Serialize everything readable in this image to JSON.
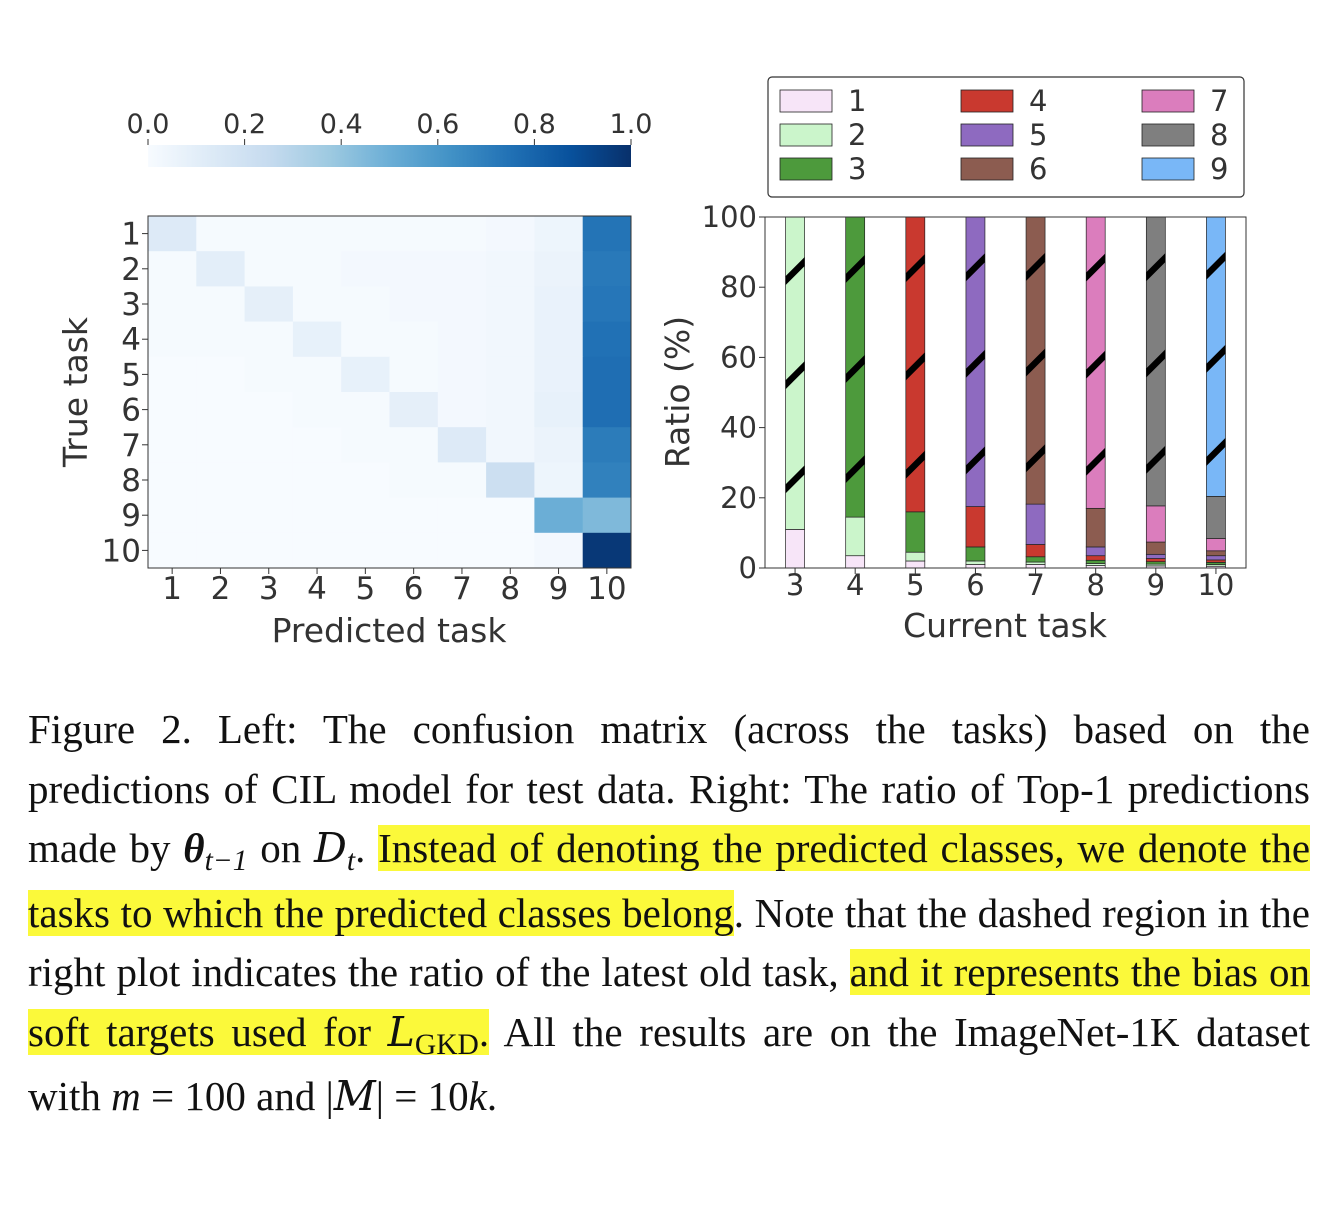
{
  "chart_data": [
    {
      "type": "heatmap",
      "xlabel": "Predicted task",
      "ylabel": "True task",
      "x_ticks": [
        "1",
        "2",
        "3",
        "4",
        "5",
        "6",
        "7",
        "8",
        "9",
        "10"
      ],
      "y_ticks": [
        "1",
        "2",
        "3",
        "4",
        "5",
        "6",
        "7",
        "8",
        "9",
        "10"
      ],
      "colorbar": {
        "ticks": [
          "0.0",
          "0.2",
          "0.4",
          "0.6",
          "0.8",
          "1.0"
        ],
        "range": [
          0,
          1
        ],
        "colormap": [
          "#f7fbff",
          "#deebf7",
          "#c6dbef",
          "#9ecae1",
          "#6baed6",
          "#4292c6",
          "#2171b5",
          "#08519c",
          "#08306b"
        ]
      },
      "matrix": [
        [
          0.13,
          0.01,
          0.01,
          0.01,
          0.01,
          0.01,
          0.01,
          0.02,
          0.05,
          0.74
        ],
        [
          0.01,
          0.1,
          0.01,
          0.01,
          0.02,
          0.02,
          0.02,
          0.03,
          0.06,
          0.72
        ],
        [
          0.01,
          0.01,
          0.09,
          0.01,
          0.01,
          0.02,
          0.02,
          0.03,
          0.07,
          0.73
        ],
        [
          0.01,
          0.01,
          0.01,
          0.08,
          0.01,
          0.01,
          0.02,
          0.03,
          0.07,
          0.75
        ],
        [
          0.0,
          0.0,
          0.01,
          0.01,
          0.08,
          0.01,
          0.02,
          0.03,
          0.07,
          0.76
        ],
        [
          0.0,
          0.0,
          0.0,
          0.01,
          0.01,
          0.09,
          0.02,
          0.03,
          0.08,
          0.76
        ],
        [
          0.0,
          0.0,
          0.0,
          0.0,
          0.01,
          0.01,
          0.13,
          0.03,
          0.06,
          0.71
        ],
        [
          0.0,
          0.0,
          0.0,
          0.0,
          0.0,
          0.01,
          0.01,
          0.22,
          0.05,
          0.69
        ],
        [
          0.0,
          0.0,
          0.0,
          0.0,
          0.0,
          0.0,
          0.0,
          0.0,
          0.5,
          0.45
        ],
        [
          0.0,
          0.0,
          0.0,
          0.0,
          0.0,
          0.0,
          0.0,
          0.0,
          0.02,
          0.97
        ]
      ]
    },
    {
      "type": "bar",
      "stacked": true,
      "xlabel": "Current task",
      "ylabel": "Ratio (%)",
      "ylim": [
        0,
        100
      ],
      "y_ticks": [
        0,
        20,
        40,
        60,
        80,
        100
      ],
      "categories": [
        "3",
        "4",
        "5",
        "6",
        "7",
        "8",
        "9",
        "10"
      ],
      "legend_position": "top",
      "series": [
        {
          "name": "1",
          "color": "#f7e5f8",
          "values": [
            11,
            3.5,
            2,
            1,
            1,
            0.7,
            0.6,
            0.5
          ]
        },
        {
          "name": "2",
          "color": "#cbf5cb",
          "values": [
            89,
            11,
            2.5,
            1,
            0.7,
            0.6,
            0.5,
            0.5
          ]
        },
        {
          "name": "3",
          "color": "#4d9a3c",
          "values": [
            0,
            85.5,
            11.5,
            4,
            1.5,
            0.9,
            0.7,
            0.6
          ]
        },
        {
          "name": "4",
          "color": "#c9392f",
          "values": [
            0,
            0,
            84,
            11.5,
            3.5,
            1.3,
            0.9,
            0.7
          ]
        },
        {
          "name": "5",
          "color": "#8e6ac0",
          "values": [
            0,
            0,
            0,
            82.5,
            11.5,
            2.5,
            1.2,
            1.2
          ]
        },
        {
          "name": "6",
          "color": "#8c5c50",
          "values": [
            0,
            0,
            0,
            0,
            81.8,
            11,
            3.5,
            1.4
          ]
        },
        {
          "name": "7",
          "color": "#db7dbd",
          "values": [
            0,
            0,
            0,
            0,
            0,
            83,
            10.3,
            3.5
          ]
        },
        {
          "name": "8",
          "color": "#7f7f7f",
          "values": [
            0,
            0,
            0,
            0,
            0,
            0,
            82.3,
            12
          ]
        },
        {
          "name": "9",
          "color": "#79b7f7",
          "values": [
            0,
            0,
            0,
            0,
            0,
            0,
            0,
            79.6
          ]
        }
      ],
      "dashed_series_index_per_category": [
        1,
        2,
        3,
        4,
        5,
        6,
        7,
        8
      ]
    }
  ],
  "caption": {
    "p1": "Figure 2. Left: The confusion matrix (across the tasks) based on the predictions of CIL model for test data. Right: The ratio of Top-1 predictions made by ",
    "theta": "θ",
    "theta_sub": "t−1",
    "p2": " on ",
    "D": "D",
    "D_sub": "t",
    "p3": ". ",
    "h1": "Instead of denoting the predicted classes, we denote the tasks to which the predicted classes belong",
    "p4": ". Note that the dashed region in the right plot indicates the ratio of the latest old task, ",
    "h2": "and it represents the bias on soft targets used for ",
    "L": "L",
    "L_sub": "GKD",
    "h2_end": ".",
    "p5": " All the results are on the ImageNet-1K dataset with ",
    "m": "m",
    "p6": " = 100 and |",
    "M": "M",
    "p7": "| = 10",
    "k": "k",
    "p8": "."
  }
}
